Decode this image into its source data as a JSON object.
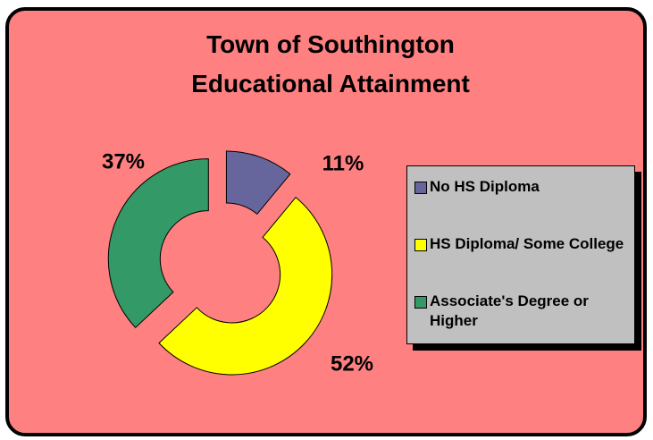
{
  "chart_data": {
    "type": "doughnut",
    "title": "Town of Southington Educational Attainment",
    "categories": [
      "No HS Diploma",
      "HS Diploma/ Some College",
      "Associate's Degree or Higher"
    ],
    "values": [
      11,
      52,
      37
    ],
    "value_labels": [
      "11%",
      "52%",
      "37%"
    ],
    "colors": [
      "#66669c",
      "#ffff00",
      "#339966"
    ],
    "legend": "right"
  }
}
